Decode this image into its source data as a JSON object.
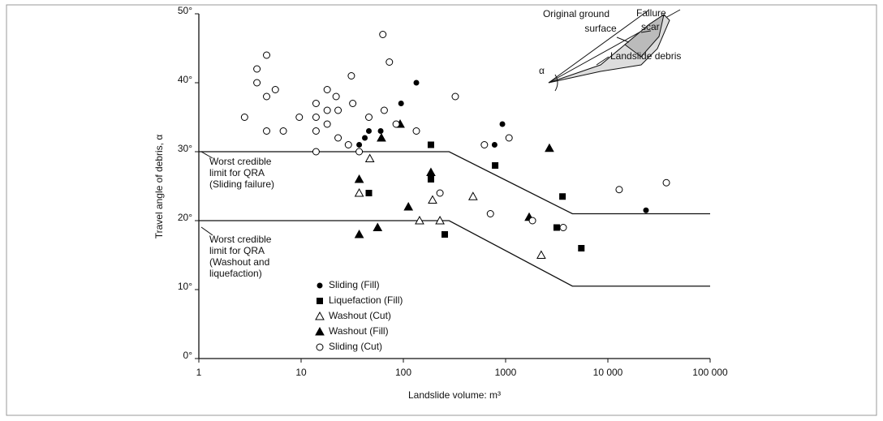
{
  "chart_data": {
    "type": "scatter",
    "x_label": "Landslide volume: m³",
    "y_label": "Travel angle of debris, α",
    "xlim": [
      1,
      100000
    ],
    "ylim": [
      0,
      50
    ],
    "xscale": "log",
    "xticks": [
      1,
      10,
      100,
      1000,
      {
        "value": 10000,
        "label": "10 000"
      },
      {
        "value": 100000,
        "label": "100 000"
      }
    ],
    "yticks": [
      {
        "value": 0,
        "label": "0°"
      },
      {
        "value": 10,
        "label": "10°"
      },
      {
        "value": 20,
        "label": "20°"
      },
      {
        "value": 30,
        "label": "30°"
      },
      {
        "value": 40,
        "label": "40°"
      },
      {
        "value": 50,
        "label": "50°"
      }
    ],
    "series": [
      {
        "name": "Sliding (Fill)",
        "marker": "circle",
        "filled": true,
        "color": "#000000",
        "x": [
          37,
          42,
          46,
          60,
          95,
          134,
          780,
          930,
          23600
        ],
        "values": [
          31,
          32,
          33,
          33,
          37,
          40,
          31,
          34,
          21.5
        ]
      },
      {
        "name": "Liquefaction (Fill)",
        "marker": "square",
        "filled": true,
        "color": "#000000",
        "x": [
          46,
          186,
          186,
          790,
          254,
          3600,
          3160,
          5500
        ],
        "values": [
          24,
          31,
          26,
          28,
          18,
          23.5,
          19,
          16
        ]
      },
      {
        "name": "Washout (Cut)",
        "marker": "triangle",
        "filled": false,
        "color": "#000000",
        "x": [
          47,
          37,
          144,
          228,
          193,
          480,
          2230
        ],
        "values": [
          29,
          24,
          20,
          20,
          23,
          23.5,
          15
        ]
      },
      {
        "name": "Washout (Fill)",
        "marker": "triangle",
        "filled": true,
        "color": "#000000",
        "x": [
          37,
          37,
          56,
          61,
          93,
          112,
          186,
          1700,
          2680
        ],
        "values": [
          26,
          18,
          19,
          32,
          34,
          22,
          27,
          20.5,
          30.5
        ]
      },
      {
        "name": "Sliding (Cut)",
        "marker": "circle",
        "filled": false,
        "color": "#000000",
        "x": [
          2.8,
          3.7,
          3.7,
          4.6,
          4.6,
          4.6,
          5.6,
          6.7,
          9.6,
          14,
          14,
          14,
          14,
          18,
          18,
          18,
          22,
          23,
          23,
          29,
          31,
          32,
          37,
          46,
          63,
          65,
          73,
          85,
          134,
          228,
          322,
          620,
          710,
          1080,
          1830,
          3660,
          12900,
          37300
        ],
        "values": [
          35,
          42,
          40,
          44,
          38,
          33,
          39,
          33,
          35,
          37,
          35,
          33,
          30,
          39,
          36,
          34,
          38,
          36,
          32,
          31,
          41,
          37,
          30,
          35,
          47,
          36,
          43,
          34,
          33,
          24,
          38,
          31,
          21,
          32,
          20,
          19,
          24.5,
          25.5
        ]
      }
    ],
    "limit_lines": [
      {
        "label": [
          "Worst credible",
          "limit for QRA",
          "(Sliding failure)"
        ],
        "x": [
          1,
          280,
          4500,
          100000
        ],
        "values": [
          30,
          30,
          21,
          21
        ]
      },
      {
        "label": [
          "Worst credible",
          "limit for QRA",
          "(Washout and",
          "liquefaction)"
        ],
        "x": [
          1,
          280,
          4500,
          100000
        ],
        "values": [
          20,
          20,
          10.5,
          10.5
        ]
      }
    ],
    "inset": {
      "ground": [
        "Original ground",
        "surface"
      ],
      "scar": [
        "Failure",
        "scar"
      ],
      "debris": "Landslide debris",
      "angle": "α"
    }
  }
}
